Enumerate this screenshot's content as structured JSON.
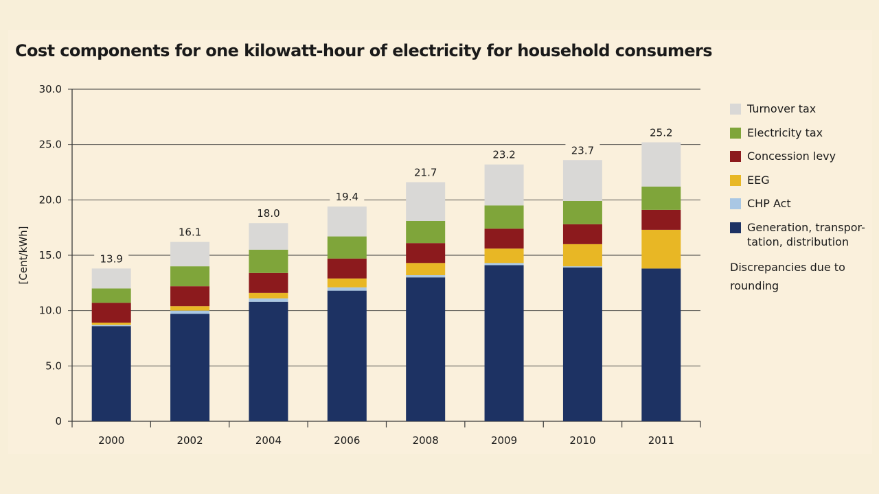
{
  "title": "Cost components for one kilowatt-hour of electricity for household consumers",
  "note": "Discrepancies due to rounding",
  "colors": {
    "generation": "#1d3263",
    "chp": "#a9c7e4",
    "eeg": "#e8b725",
    "concession": "#8c1a1d",
    "electricity_tax": "#7fa53a",
    "turnover": "#d9d8d6"
  },
  "chart_data": {
    "type": "bar",
    "stacked": true,
    "categories": [
      "2000",
      "2002",
      "2004",
      "2006",
      "2008",
      "2009",
      "2010",
      "2011"
    ],
    "ylabel": "[Cent/kWh]",
    "xlabel": "",
    "ylim": [
      0,
      30
    ],
    "yticks": [
      "0",
      "5.0",
      "10.0",
      "15.0",
      "20.0",
      "25.0",
      "30.0"
    ],
    "grid": true,
    "legend_position": "right",
    "totals": [
      "13.9",
      "16.1",
      "18.0",
      "19.4",
      "21.7",
      "23.2",
      "23.7",
      "25.2"
    ],
    "series": [
      {
        "name": "Generation, transportation, distribution",
        "key": "generation",
        "values": [
          8.6,
          9.7,
          10.8,
          11.8,
          13.0,
          14.1,
          13.9,
          13.8
        ]
      },
      {
        "name": "CHP Act",
        "key": "chp",
        "values": [
          0.1,
          0.3,
          0.3,
          0.3,
          0.2,
          0.2,
          0.1,
          0.0
        ]
      },
      {
        "name": "EEG",
        "key": "eeg",
        "values": [
          0.2,
          0.4,
          0.5,
          0.8,
          1.1,
          1.3,
          2.0,
          3.5
        ]
      },
      {
        "name": "Concession levy",
        "key": "concession",
        "values": [
          1.8,
          1.8,
          1.8,
          1.8,
          1.8,
          1.8,
          1.8,
          1.8
        ]
      },
      {
        "name": "Electricity tax",
        "key": "electricity_tax",
        "values": [
          1.3,
          1.8,
          2.1,
          2.0,
          2.0,
          2.1,
          2.1,
          2.1
        ]
      },
      {
        "name": "Turnover tax",
        "key": "turnover",
        "values": [
          1.8,
          2.2,
          2.4,
          2.7,
          3.5,
          3.7,
          3.7,
          4.0
        ]
      }
    ]
  },
  "legend": [
    {
      "label": "Turnover tax",
      "key": "turnover"
    },
    {
      "label": "Electricity tax",
      "key": "electricity_tax"
    },
    {
      "label": "Concession levy",
      "key": "concession"
    },
    {
      "label": "EEG",
      "key": "eeg"
    },
    {
      "label": "CHP Act",
      "key": "chp"
    },
    {
      "label": "Generation, transpor-\ntation, distribution",
      "key": "generation"
    }
  ]
}
